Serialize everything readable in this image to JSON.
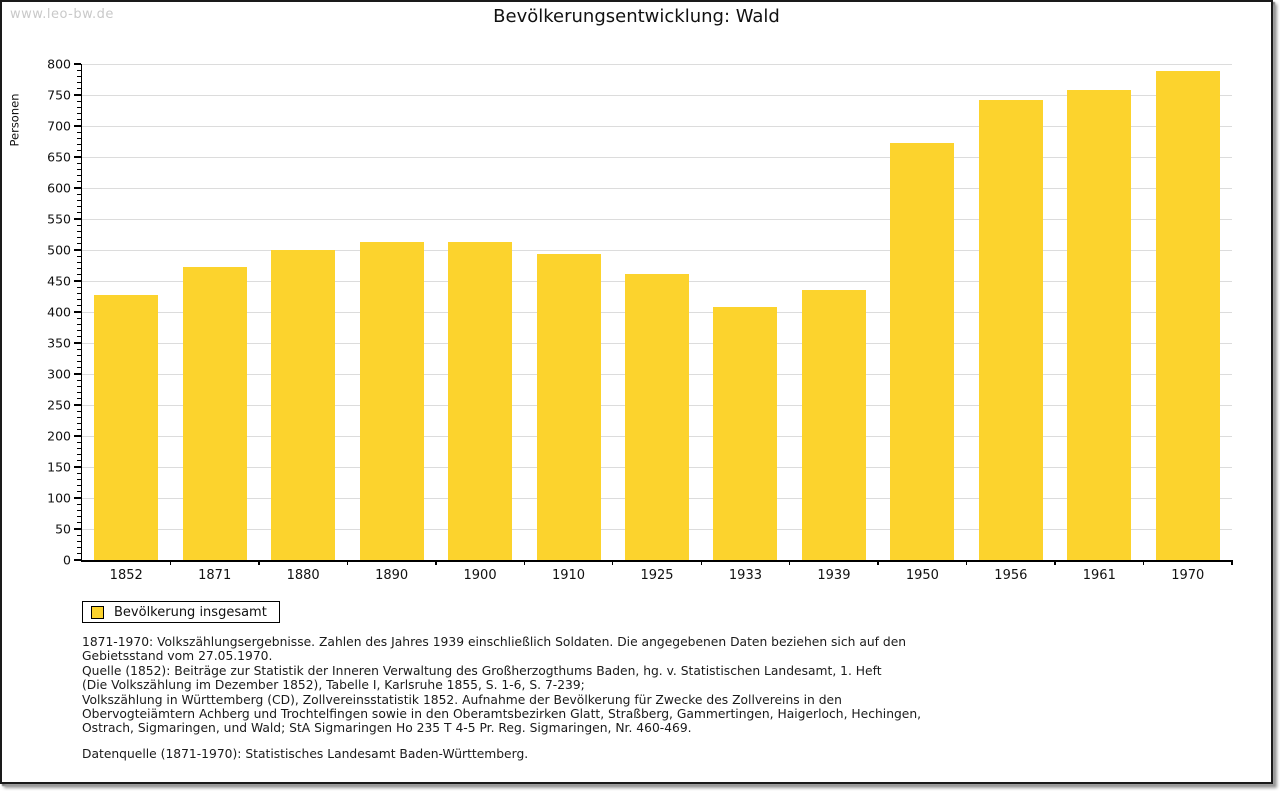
{
  "watermark": "www.leo-bw.de",
  "title": "Bevölkerungsentwicklung: Wald",
  "chart_data": {
    "type": "bar",
    "title": "Bevölkerungsentwicklung: Wald",
    "xlabel": "",
    "ylabel": "Personen",
    "categories": [
      "1852",
      "1871",
      "1880",
      "1890",
      "1900",
      "1910",
      "1925",
      "1933",
      "1939",
      "1950",
      "1956",
      "1961",
      "1970"
    ],
    "values": [
      428,
      472,
      500,
      513,
      513,
      494,
      462,
      408,
      435,
      673,
      742,
      758,
      788
    ],
    "ylim": [
      0,
      800
    ],
    "ytick_step": 50,
    "ytick_minor_step": 10,
    "grid": true,
    "bar_color": "#FCD32D",
    "grid_color": "#dcdcdc",
    "legend": {
      "label": "Bevölkerung insgesamt",
      "position": "bottom-left"
    }
  },
  "footnote": {
    "lines": [
      "1871-1970: Volkszählungsergebnisse. Zahlen des Jahres 1939 einschließlich Soldaten. Die angegebenen Daten beziehen sich auf den",
      "Gebietsstand vom 27.05.1970.",
      "Quelle (1852): Beiträge zur Statistik der Inneren Verwaltung des Großherzogthums Baden, hg. v. Statistischen Landesamt, 1. Heft",
      "(Die Volkszählung im Dezember 1852), Tabelle I, Karlsruhe 1855, S. 1-6, S. 7-239;",
      "Volkszählung in Württemberg (CD), Zollvereinsstatistik 1852. Aufnahme der Bevölkerung für Zwecke des Zollvereins in den",
      "Obervogteiämtern Achberg und Trochtelfingen sowie in den Oberamtsbezirken Glatt, Straßberg, Gammertingen, Haigerloch, Hechingen,",
      "Ostrach, Sigmaringen, und Wald; StA Sigmaringen Ho 235 T 4-5 Pr. Reg. Sigmaringen, Nr. 460-469."
    ],
    "datasource": "Datenquelle (1871-1970): Statistisches Landesamt Baden-Württemberg."
  }
}
